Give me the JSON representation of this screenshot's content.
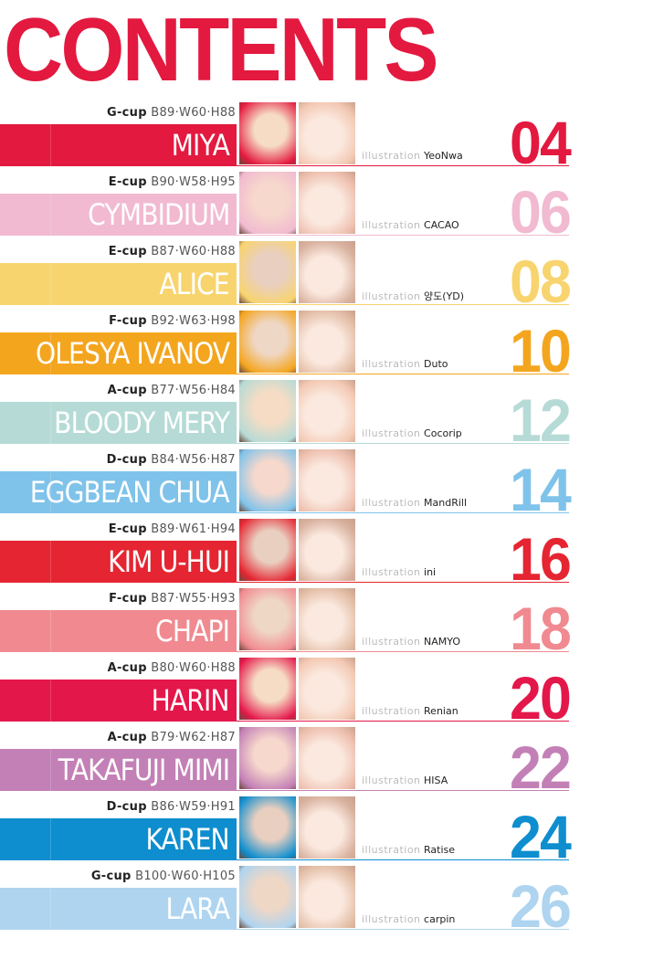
{
  "title": "CONTENTS",
  "illustration_label": "illustration",
  "entries": [
    {
      "cup": "G-cup",
      "measurements": "B89·W60·H88",
      "name": "MIYA",
      "artist": "YeoNwa",
      "page": "04",
      "color": "#e3193f"
    },
    {
      "cup": "E-cup",
      "measurements": "B90·W58·H95",
      "name": "CYMBIDIUM",
      "artist": "CACAO",
      "page": "06",
      "color": "#f1bad0"
    },
    {
      "cup": "E-cup",
      "measurements": "B87·W60·H88",
      "name": "ALICE",
      "artist": "양도(YD)",
      "page": "08",
      "color": "#f8d46e"
    },
    {
      "cup": "F-cup",
      "measurements": "B92·W63·H98",
      "name": "OLESYA IVANOV",
      "artist": "Duto",
      "page": "10",
      "color": "#f4a51e"
    },
    {
      "cup": "A-cup",
      "measurements": "B77·W56·H84",
      "name": "BLOODY MERY",
      "artist": "Cocorip",
      "page": "12",
      "color": "#b6dbd6"
    },
    {
      "cup": "D-cup",
      "measurements": "B84·W56·H87",
      "name": "EGGBEAN CHUA",
      "artist": "MandRill",
      "page": "14",
      "color": "#7fc3ea"
    },
    {
      "cup": "E-cup",
      "measurements": "B89·W61·H94",
      "name": "KIM U-HUI",
      "artist": "ini",
      "page": "16",
      "color": "#e52531"
    },
    {
      "cup": "F-cup",
      "measurements": "B87·W55·H93",
      "name": "CHAPI",
      "artist": "NAMYO",
      "page": "18",
      "color": "#f08a90"
    },
    {
      "cup": "A-cup",
      "measurements": "B80·W60·H88",
      "name": "HARIN",
      "artist": "Renian",
      "page": "20",
      "color": "#e4174a"
    },
    {
      "cup": "A-cup",
      "measurements": "B79·W62·H87",
      "name": "TAKAFUJI MIMI",
      "artist": "HISA",
      "page": "22",
      "color": "#c380b6"
    },
    {
      "cup": "D-cup",
      "measurements": "B86·W59·H91",
      "name": "KAREN",
      "artist": "Ratise",
      "page": "24",
      "color": "#0e8ecf"
    },
    {
      "cup": "G-cup",
      "measurements": "B100·W60·H105",
      "name": "LARA",
      "artist": "carpin",
      "page": "26",
      "color": "#aed4f0"
    }
  ]
}
